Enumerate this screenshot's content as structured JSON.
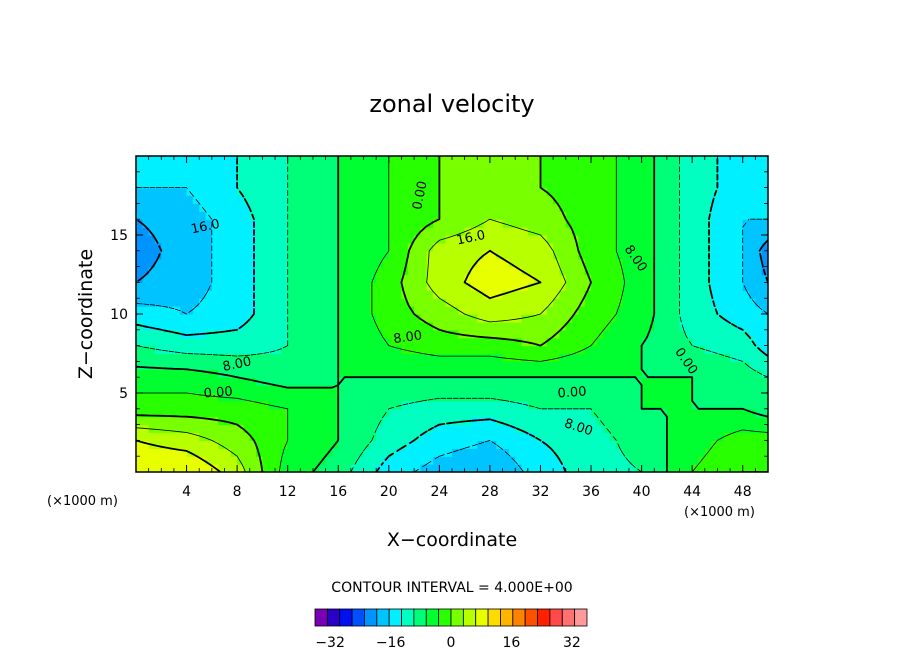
{
  "chart_data": {
    "type": "heatmap",
    "title": "zonal velocity",
    "xlabel": "X−coordinate",
    "ylabel": "Z−coordinate",
    "x_unit": "(×1000 m)",
    "y_unit": "(×1000 m)",
    "xlim": [
      0,
      50
    ],
    "ylim": [
      0,
      20
    ],
    "xticks": [
      "4",
      "8",
      "12",
      "16",
      "20",
      "24",
      "28",
      "32",
      "36",
      "40",
      "44",
      "48"
    ],
    "yticks": [
      "5",
      "10",
      "15"
    ],
    "contour_interval_text": "CONTOUR INTERVAL = 4.000E+00",
    "contour_labels": [
      "16.0",
      "0.00",
      "16.0",
      "8.00",
      "8.00",
      "8.00",
      "0.00",
      "0.00",
      "0.00",
      "8.00"
    ],
    "colorbar": {
      "levels_min": -36,
      "levels_max": 36,
      "step": 4,
      "tick_labels": [
        "−32",
        "−16",
        "0",
        "16",
        "32"
      ],
      "colors": [
        "#7a00b4",
        "#2a00c8",
        "#0010f0",
        "#0050ff",
        "#0094ff",
        "#00c4ff",
        "#00f0ff",
        "#00ffc0",
        "#00ff78",
        "#00ff30",
        "#28ff00",
        "#78ff00",
        "#b8ff00",
        "#e8ff00",
        "#ffdc00",
        "#ffb400",
        "#ff8200",
        "#ff5000",
        "#ff2000",
        "#ff4a4a",
        "#ff7070",
        "#ff9a9a"
      ]
    },
    "field": {
      "x": [
        0,
        4,
        8,
        12,
        16,
        20,
        24,
        28,
        32,
        36,
        40,
        44,
        48,
        50
      ],
      "z": [
        0,
        2,
        4,
        6,
        8,
        10,
        12,
        14,
        16,
        18,
        20
      ],
      "u": [
        [
          20,
          20,
          14,
          2,
          -2,
          -10,
          -14,
          -16,
          -10,
          -6,
          -4,
          4,
          8,
          8
        ],
        [
          16,
          14,
          10,
          4,
          0,
          -6,
          -10,
          -12,
          -8,
          -6,
          -2,
          2,
          6,
          6
        ],
        [
          6,
          6,
          6,
          4,
          0,
          -4,
          -6,
          -6,
          -4,
          -4,
          0,
          0,
          0,
          -2
        ],
        [
          2,
          2,
          0,
          -2,
          0,
          0,
          0,
          0,
          0,
          0,
          0,
          0,
          -2,
          -4
        ],
        [
          -4,
          -6,
          -6,
          -4,
          0,
          4,
          6,
          6,
          8,
          4,
          0,
          -4,
          -6,
          -10
        ],
        [
          -10,
          -12,
          -10,
          -4,
          0,
          6,
          10,
          14,
          12,
          6,
          2,
          -6,
          -10,
          -12
        ],
        [
          -16,
          -14,
          -10,
          -4,
          0,
          6,
          14,
          18,
          16,
          8,
          2,
          -6,
          -12,
          -16
        ],
        [
          -18,
          -14,
          -10,
          -4,
          0,
          4,
          14,
          16,
          14,
          6,
          2,
          -6,
          -12,
          -18
        ],
        [
          -16,
          -14,
          -10,
          -4,
          0,
          4,
          8,
          12,
          10,
          6,
          2,
          -6,
          -12,
          -12
        ],
        [
          -12,
          -12,
          -8,
          -4,
          0,
          4,
          8,
          10,
          8,
          6,
          2,
          -6,
          -10,
          -12
        ],
        [
          -12,
          -10,
          -8,
          -4,
          0,
          4,
          8,
          8,
          8,
          6,
          2,
          -6,
          -10,
          -12
        ]
      ]
    }
  }
}
